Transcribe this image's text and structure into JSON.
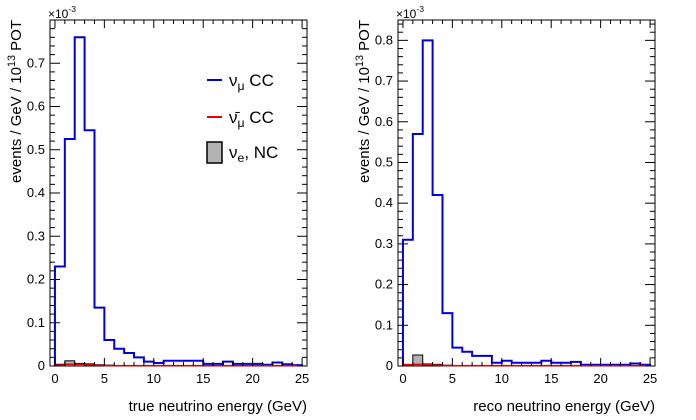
{
  "colors": {
    "numu_cc": "#0000dd",
    "numubar_cc": "#ee0000",
    "nue_nc_fill": "#b3b3b3",
    "nue_nc_line": "#000000"
  },
  "legend": {
    "numu_cc": "ν_μ CC",
    "numubar_cc": "ν̄_μ CC",
    "nue_nc": "ν_e, NC"
  },
  "chart_data": [
    {
      "type": "bar",
      "histogram": true,
      "exponent_label": "×10^-3",
      "xlabel": "true neutrino energy (GeV)",
      "ylabel": "events / GeV / 10^13 POT",
      "xlim": [
        -0.5,
        25.5
      ],
      "ylim": [
        0,
        0.8
      ],
      "xticks": [
        0,
        5,
        10,
        15,
        20,
        25
      ],
      "yticks": [
        0,
        0.1,
        0.2,
        0.3,
        0.4,
        0.5,
        0.6,
        0.7
      ],
      "bin_edges": [
        0,
        1,
        2,
        3,
        4,
        5,
        6,
        7,
        8,
        9,
        10,
        11,
        12,
        13,
        14,
        15,
        16,
        17,
        18,
        19,
        20,
        21,
        22,
        23,
        24,
        25
      ],
      "legend_position": "top-right",
      "series": [
        {
          "name": "ν_μ CC",
          "style": "step",
          "color": "numu_cc",
          "values": [
            0.23,
            0.525,
            0.76,
            0.545,
            0.135,
            0.06,
            0.04,
            0.03,
            0.02,
            0.01,
            0.007,
            0.012,
            0.012,
            0.012,
            0.012,
            0.005,
            0.005,
            0.01,
            0.005,
            0.005,
            0.005,
            0.003,
            0.008,
            0.004,
            0.002
          ]
        },
        {
          "name": "ν̄_μ CC",
          "style": "step",
          "color": "numubar_cc",
          "values": [
            0.002,
            0.004,
            0.004,
            0.003,
            0.002,
            0.001,
            0.001,
            0.001,
            0.001,
            0.001,
            0.001,
            0.001,
            0.001,
            0.001,
            0.001,
            0.001,
            0.001,
            0.001,
            0.001,
            0.001,
            0.001,
            0.001,
            0.001,
            0.001,
            0.001
          ]
        },
        {
          "name": "ν_e, NC",
          "style": "filled",
          "color": "nue_nc_fill",
          "values": [
            0.004,
            0.012,
            0.006,
            0.005,
            0.003,
            0.002,
            0.001,
            0.001,
            0.001,
            0.001,
            0.001,
            0.001,
            0.001,
            0.001,
            0.001,
            0.001,
            0.001,
            0.001,
            0.001,
            0.001,
            0.001,
            0.001,
            0.001,
            0.001,
            0.001
          ]
        }
      ]
    },
    {
      "type": "bar",
      "histogram": true,
      "exponent_label": "×10^-3",
      "xlabel": "reco neutrino energy (GeV)",
      "ylabel": "events / GeV / 10^13 POT",
      "xlim": [
        -0.5,
        25.5
      ],
      "ylim": [
        0,
        0.85
      ],
      "xticks": [
        0,
        5,
        10,
        15,
        20,
        25
      ],
      "yticks": [
        0,
        0.1,
        0.2,
        0.3,
        0.4,
        0.5,
        0.6,
        0.7,
        0.8
      ],
      "bin_edges": [
        0,
        1,
        2,
        3,
        4,
        5,
        6,
        7,
        8,
        9,
        10,
        11,
        12,
        13,
        14,
        15,
        16,
        17,
        18,
        19,
        20,
        21,
        22,
        23,
        24,
        25
      ],
      "series": [
        {
          "name": "ν_μ CC",
          "style": "step",
          "color": "numu_cc",
          "values": [
            0.31,
            0.57,
            0.8,
            0.42,
            0.13,
            0.045,
            0.035,
            0.025,
            0.025,
            0.008,
            0.013,
            0.008,
            0.008,
            0.008,
            0.013,
            0.008,
            0.008,
            0.01,
            0.003,
            0.003,
            0.003,
            0.003,
            0.003,
            0.006,
            0.003
          ]
        },
        {
          "name": "ν̄_μ CC",
          "style": "step",
          "color": "numubar_cc",
          "values": [
            0.003,
            0.004,
            0.003,
            0.002,
            0.001,
            0.001,
            0.001,
            0.001,
            0.001,
            0.001,
            0.001,
            0.001,
            0.001,
            0.001,
            0.001,
            0.001,
            0.001,
            0.001,
            0.001,
            0.001,
            0.001,
            0.001,
            0.001,
            0.001,
            0.001
          ]
        },
        {
          "name": "ν_e, NC",
          "style": "filled",
          "color": "nue_nc_fill",
          "values": [
            0.004,
            0.027,
            0.005,
            0.004,
            0.002,
            0.001,
            0.001,
            0.001,
            0.001,
            0.001,
            0.001,
            0.001,
            0.001,
            0.001,
            0.001,
            0.001,
            0.001,
            0.001,
            0.001,
            0.001,
            0.001,
            0.001,
            0.001,
            0.001,
            0.001
          ]
        }
      ]
    }
  ]
}
